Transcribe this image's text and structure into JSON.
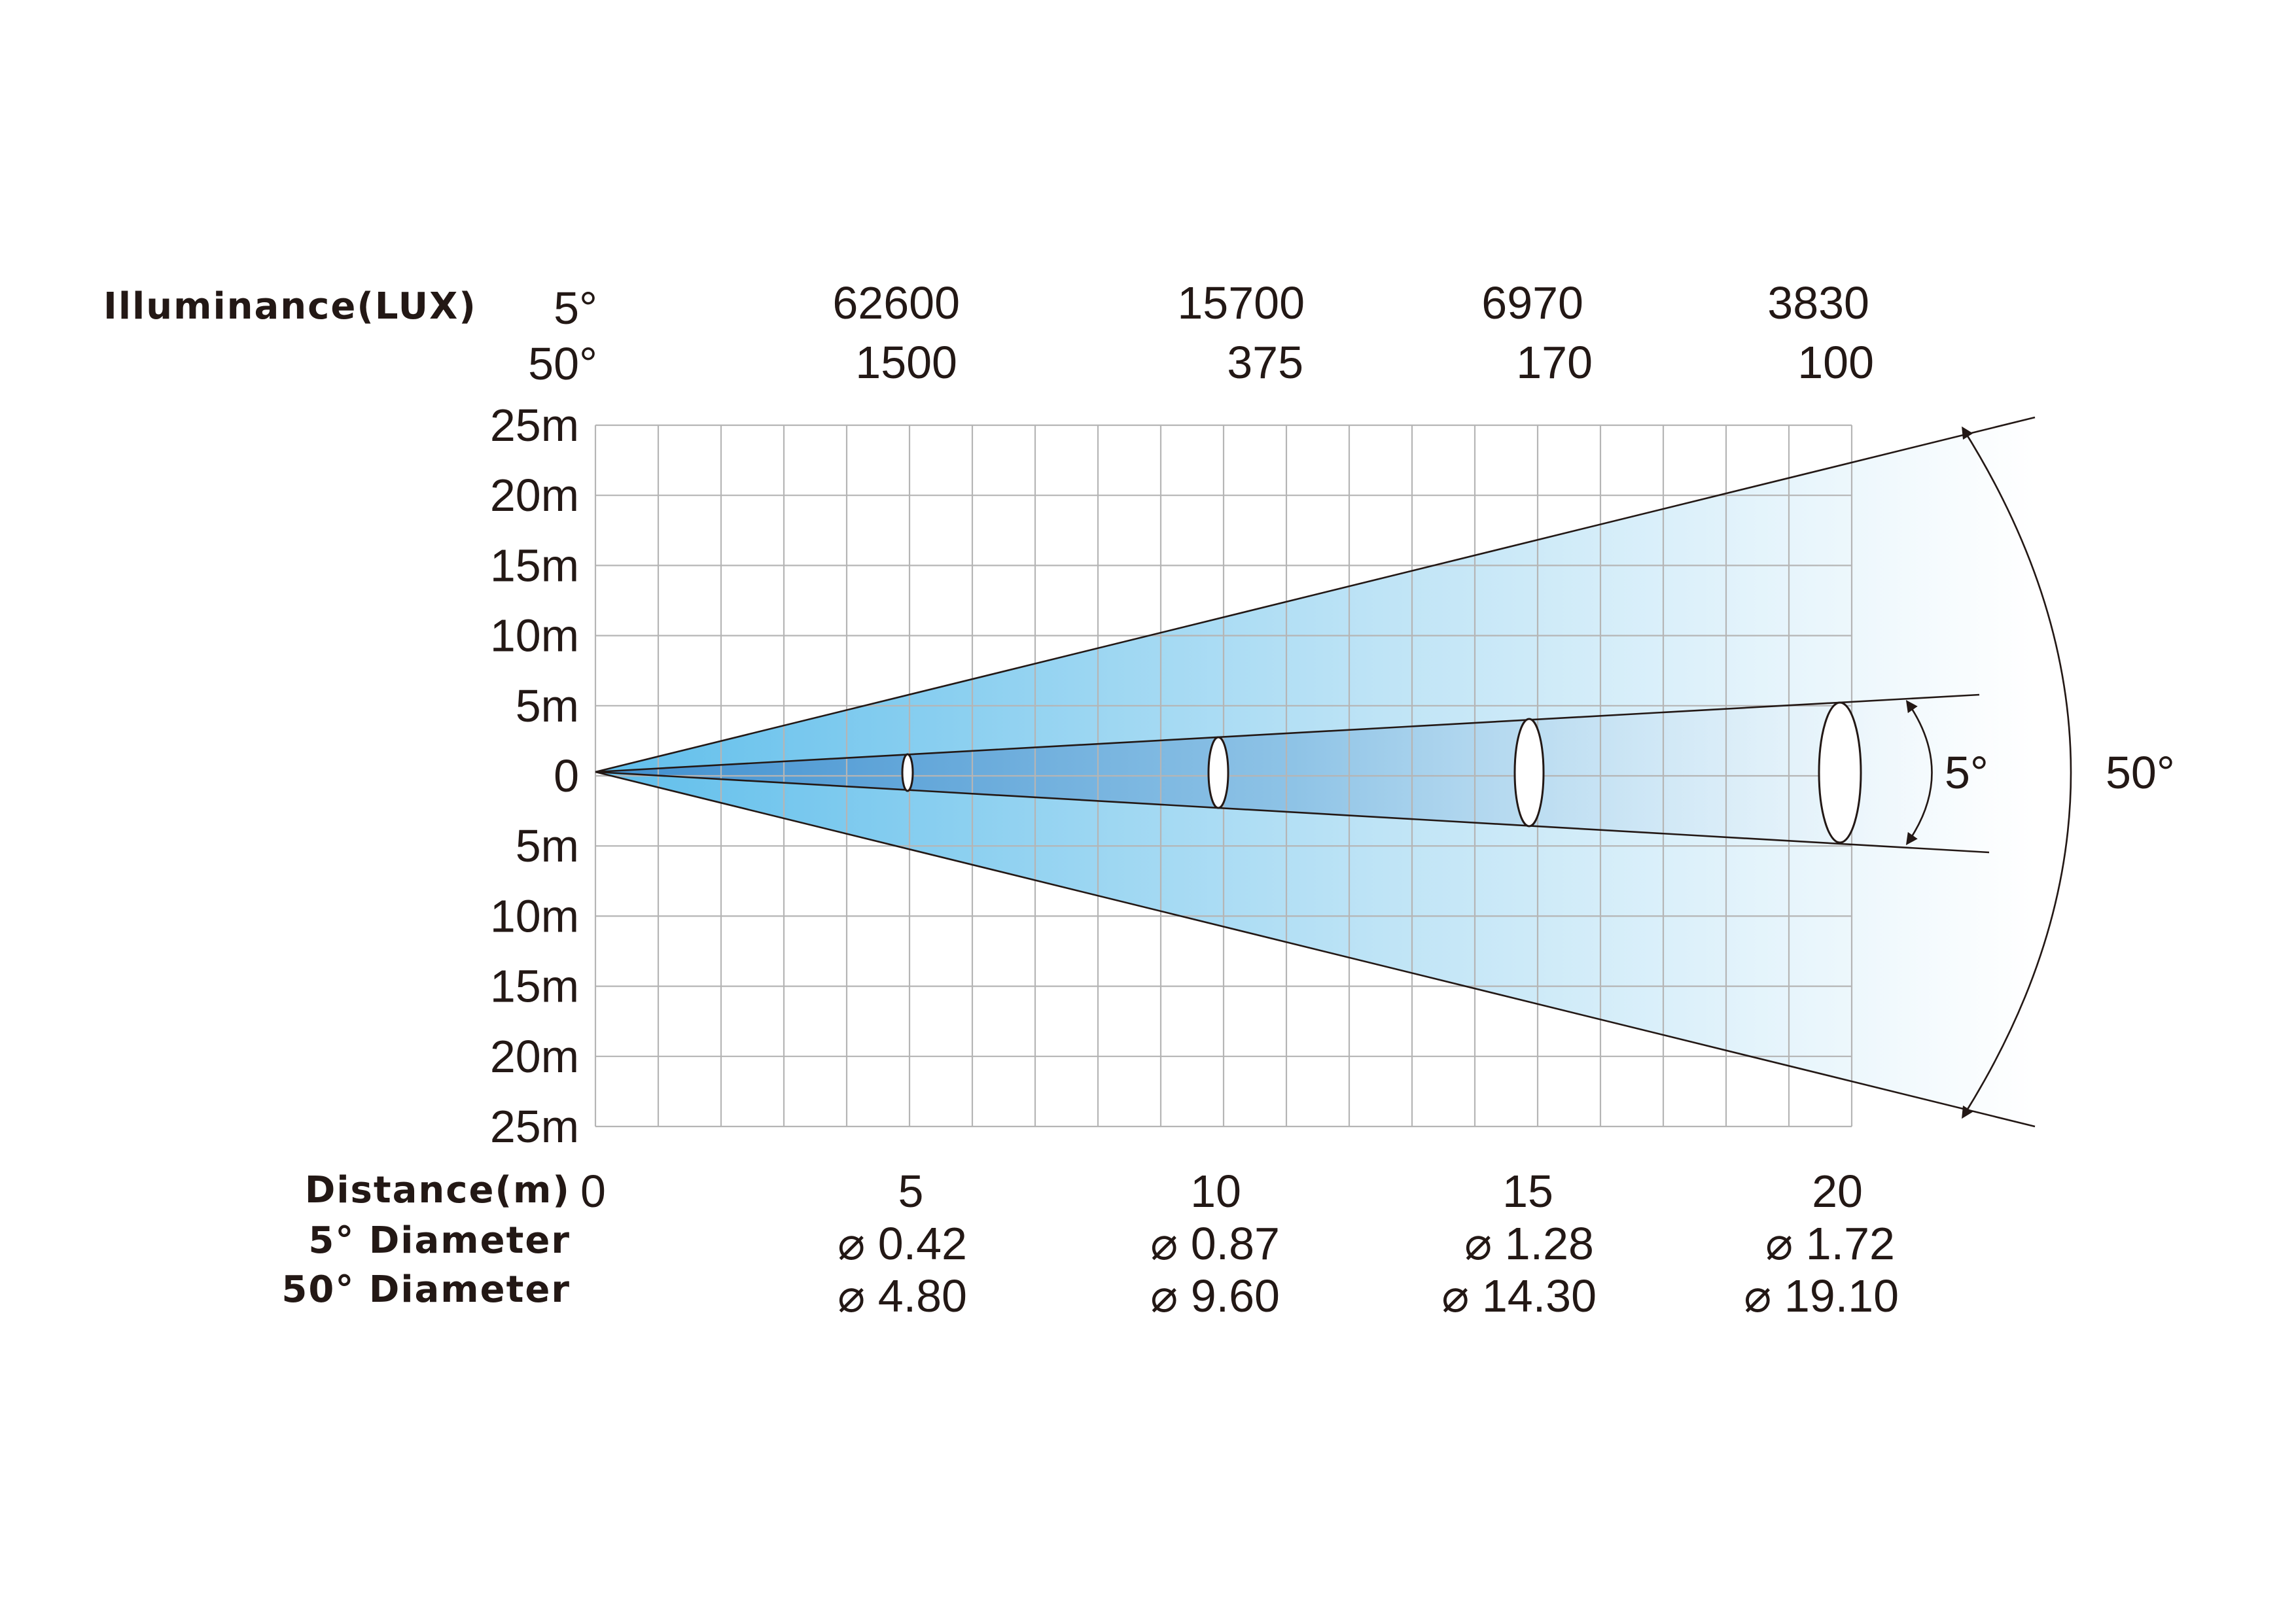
{
  "illuminance": {
    "label": "Illuminance(LUX)",
    "rows": [
      {
        "angle": "5°",
        "values": [
          "62600",
          "15700",
          "6970",
          "3830"
        ]
      },
      {
        "angle": "50°",
        "values": [
          "1500",
          "375",
          "170",
          "100"
        ]
      }
    ]
  },
  "y_axis": {
    "ticks": [
      "25m",
      "20m",
      "15m",
      "10m",
      "5m",
      "0",
      "5m",
      "10m",
      "15m",
      "20m",
      "25m"
    ]
  },
  "distance": {
    "label": "Distance(m)",
    "origin": "0",
    "values": [
      "5",
      "10",
      "15",
      "20"
    ]
  },
  "diameter_5": {
    "label": "5° Diameter",
    "values": [
      "⌀ 0.42",
      "⌀ 0.87",
      "⌀ 1.28",
      "⌀ 1.72"
    ]
  },
  "diameter_50": {
    "label": "50° Diameter",
    "values": [
      "⌀ 4.80",
      "⌀ 9.60",
      "⌀ 14.30",
      "⌀ 19.10"
    ]
  },
  "beam_angles": {
    "narrow": "5°",
    "wide": "50°"
  },
  "colors": {
    "beam_wide_start": "#5fbeeb",
    "beam_wide_end": "#ffffff",
    "beam_narrow_start": "#3f8fcf",
    "grid": "#b5b5b5",
    "text": "#231815"
  }
}
